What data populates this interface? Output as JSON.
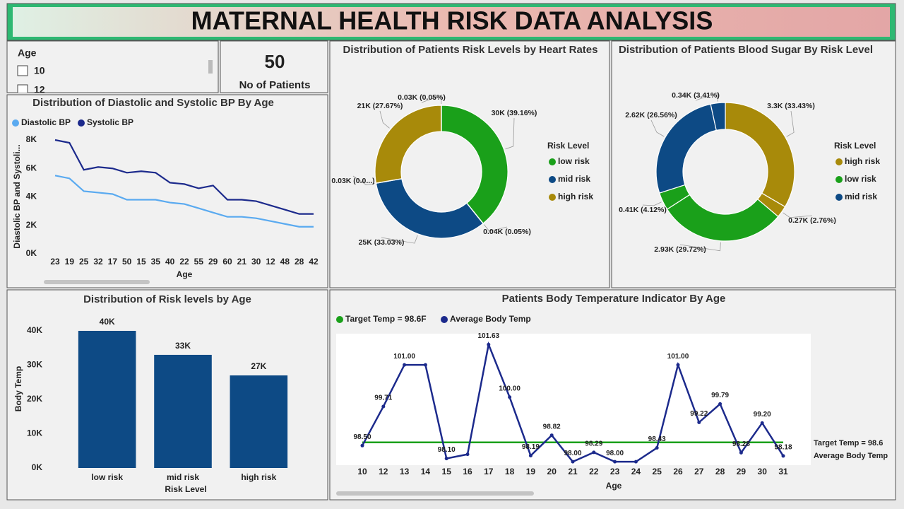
{
  "header": {
    "title": "MATERNAL HEALTH RISK DATA ANALYSIS"
  },
  "slicer": {
    "title": "Age",
    "items": [
      "10",
      "12"
    ]
  },
  "card": {
    "value": 50,
    "label": "No of Patients"
  },
  "chart_data": [
    {
      "type": "line",
      "title": "Distribution of Diastolic and Systolic BP By Age",
      "x_label": "Age",
      "y_label": "Diastolic BP and Systoli...",
      "categories": [
        "23",
        "19",
        "25",
        "32",
        "17",
        "50",
        "15",
        "35",
        "40",
        "22",
        "55",
        "29",
        "60",
        "21",
        "30",
        "12",
        "48",
        "28",
        "42"
      ],
      "series": [
        {
          "name": "Diastolic BP",
          "color": "#5aaaf0",
          "values": [
            5500,
            5300,
            4400,
            4300,
            4200,
            3800,
            3800,
            3800,
            3600,
            3500,
            3200,
            2900,
            2600,
            2600,
            2500,
            2300,
            2100,
            1900,
            1900
          ]
        },
        {
          "name": "Systolic BP",
          "color": "#1c2a8c",
          "values": [
            8000,
            7800,
            5900,
            6100,
            6000,
            5700,
            5800,
            5700,
            5000,
            4900,
            4600,
            4800,
            3800,
            3800,
            3700,
            3400,
            3100,
            2800,
            2800
          ]
        }
      ],
      "ylim": [
        0,
        8000
      ],
      "yticks": [
        {
          "value": 0,
          "label": "0K"
        },
        {
          "value": 2000,
          "label": "2K"
        },
        {
          "value": 4000,
          "label": "4K"
        },
        {
          "value": 6000,
          "label": "6K"
        },
        {
          "value": 8000,
          "label": "8K"
        }
      ]
    },
    {
      "type": "pie",
      "title": "Distribution of Patients Risk Levels by Heart Rates",
      "values": [
        39.16,
        0.05,
        33.03,
        0.05,
        27.67,
        0.05
      ],
      "value_labels": [
        "30K (39.16%)",
        "0.04K (0.05%)",
        "25K (33.03%)",
        "0.03K (0.0...)",
        "21K (27.67%)",
        "0.03K (0.05%)"
      ],
      "colors": [
        "#1aa01a",
        "#ffffff",
        "#0d4a85",
        "#ffffff",
        "#a88a0a",
        "#ffffff"
      ],
      "legend": {
        "title": "Risk Level",
        "items": [
          {
            "name": "low risk",
            "color": "#1aa01a"
          },
          {
            "name": "mid risk",
            "color": "#0d4a85"
          },
          {
            "name": "high risk",
            "color": "#a88a0a"
          }
        ]
      }
    },
    {
      "type": "pie",
      "title": "Distribution of Patients Blood Sugar By Risk Level",
      "values": [
        33.43,
        2.76,
        29.72,
        4.12,
        26.56,
        3.41
      ],
      "value_labels": [
        "3.3K (33.43%)",
        "0.27K (2.76%)",
        "2.93K (29.72%)",
        "0.41K (4.12%)",
        "2.62K (26.56%)",
        "0.34K (3.41%)"
      ],
      "colors": [
        "#a88a0a",
        "#a88a0a",
        "#1aa01a",
        "#1aa01a",
        "#0d4a85",
        "#0d4a85"
      ],
      "legend": {
        "title": "Risk Level",
        "items": [
          {
            "name": "high risk",
            "color": "#a88a0a"
          },
          {
            "name": "low risk",
            "color": "#1aa01a"
          },
          {
            "name": "mid risk",
            "color": "#0d4a85"
          }
        ]
      }
    },
    {
      "type": "bar",
      "title": "Distribution of Risk levels by Age",
      "x_label": "Risk Level",
      "y_label": "Body Temp",
      "categories": [
        "low risk",
        "mid risk",
        "high risk"
      ],
      "values": [
        40000,
        33000,
        27000
      ],
      "value_labels": [
        "40K",
        "33K",
        "27K"
      ],
      "color": "#0d4a85",
      "ylim": [
        0,
        40000
      ],
      "yticks": [
        {
          "value": 0,
          "label": "0K"
        },
        {
          "value": 10000,
          "label": "10K"
        },
        {
          "value": 20000,
          "label": "20K"
        },
        {
          "value": 30000,
          "label": "30K"
        },
        {
          "value": 40000,
          "label": "40K"
        }
      ]
    },
    {
      "type": "line",
      "title": "Patients Body Temperature Indicator By Age",
      "x_label": "Age",
      "categories": [
        "10",
        "12",
        "13",
        "14",
        "15",
        "16",
        "17",
        "18",
        "19",
        "20",
        "21",
        "22",
        "23",
        "24",
        "25",
        "26",
        "27",
        "28",
        "29",
        "30",
        "31"
      ],
      "series": [
        {
          "name": "Target  Temp = 98.6F",
          "color": "#1aa01a",
          "values": [
            98.6,
            98.6,
            98.6,
            98.6,
            98.6,
            98.6,
            98.6,
            98.6,
            98.6,
            98.6,
            98.6,
            98.6,
            98.6,
            98.6,
            98.6,
            98.6,
            98.6,
            98.6,
            98.6,
            98.6,
            98.6
          ]
        },
        {
          "name": "Average Body Temp",
          "color": "#1c2a8c",
          "values": [
            98.5,
            99.71,
            101.0,
            101.0,
            98.1,
            98.23,
            101.63,
            100.0,
            98.19,
            98.82,
            98.0,
            98.29,
            98.0,
            98.0,
            98.43,
            101.0,
            99.22,
            99.79,
            98.28,
            99.2,
            98.18
          ],
          "value_labels": [
            "98.50",
            "99.71",
            "101.00",
            null,
            "98.10",
            null,
            "101.63",
            "100.00",
            "98.19",
            "98.82",
            "98.00",
            "98.29",
            "98.00",
            null,
            "98.43",
            "101.00",
            "99.22",
            "99.79",
            "98.28",
            "99.20",
            "98.18"
          ]
        }
      ],
      "end_labels": [
        "Target  Temp = 98.6",
        "Average Body Temp"
      ],
      "ylim": [
        97.85,
        101.9
      ]
    }
  ]
}
